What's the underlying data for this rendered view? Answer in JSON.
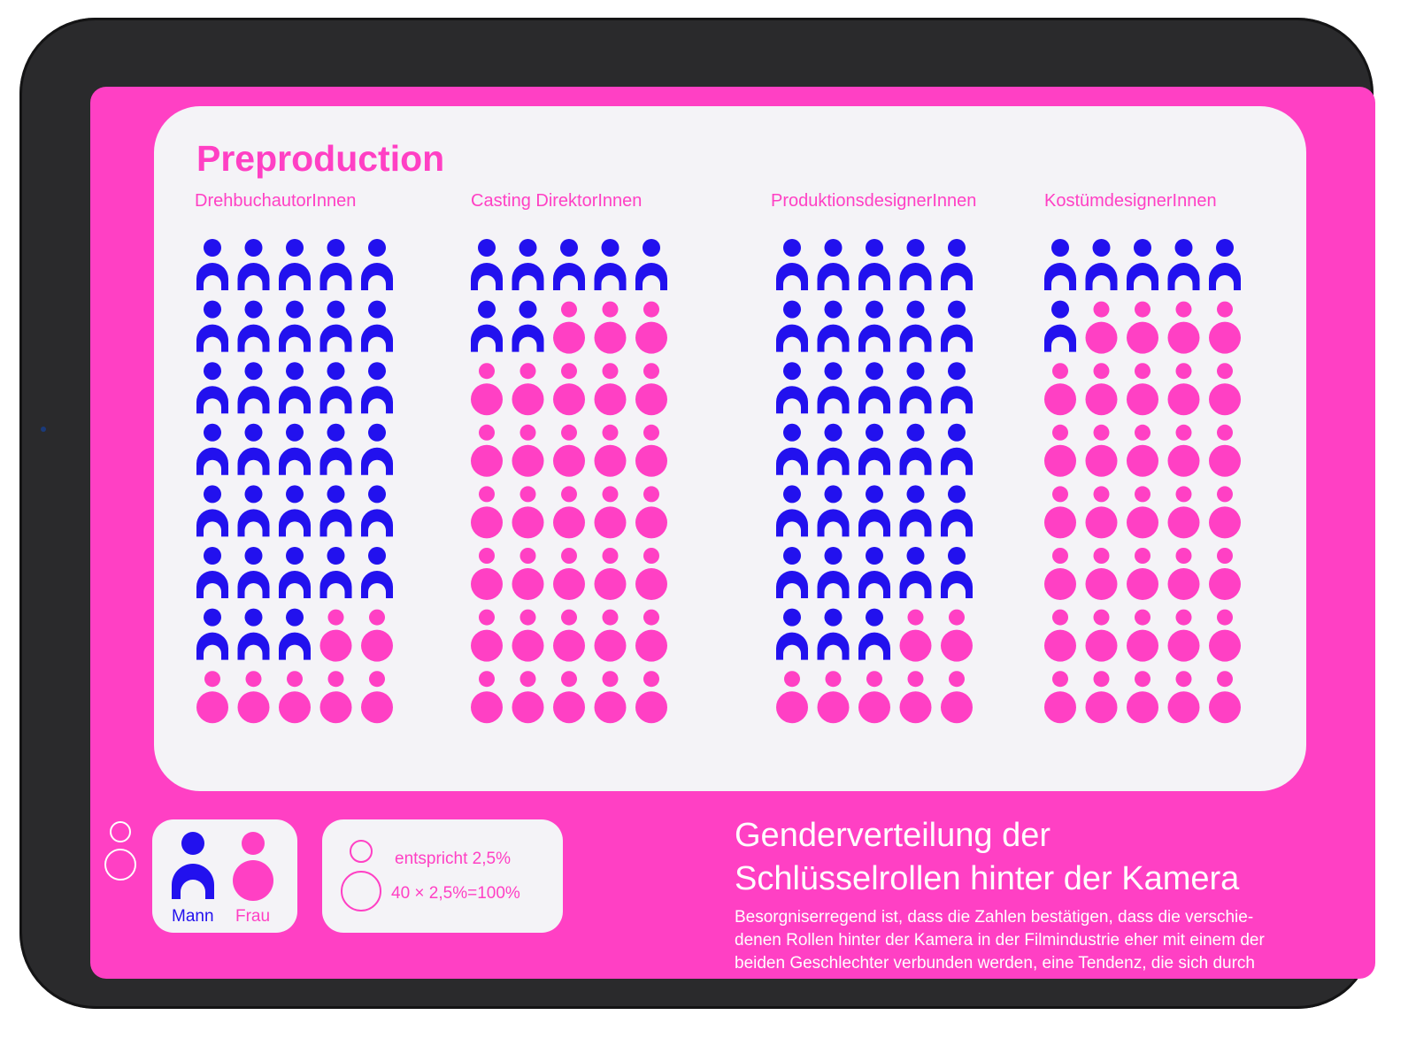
{
  "colors": {
    "mann": "#2211ee",
    "frau": "#ff40c4",
    "background": "#ff40c4",
    "card": "#f4f3f7"
  },
  "section_title": "Preproduction",
  "chart_data": {
    "type": "icon-array",
    "title": "Preproduction",
    "unit_percent_per_icon": 2.5,
    "icons_per_column": 40,
    "grid": {
      "columns": 5,
      "rows": 8
    },
    "categories": [
      "DrehbuchautorInnen",
      "Casting DirektorInnen",
      "ProduktionsdesignerInnen",
      "KostümdesignerInnen"
    ],
    "series": [
      {
        "name": "Mann",
        "values": [
          33,
          7,
          33,
          6
        ]
      },
      {
        "name": "Frau",
        "values": [
          7,
          33,
          7,
          34
        ]
      }
    ]
  },
  "legend": {
    "mann_label": "Mann",
    "frau_label": "Frau",
    "unit_text": "entspricht 2,5%",
    "total_text": "40 × 2,5%=100%"
  },
  "article": {
    "title_line1": "Genderverteilung der",
    "title_line2": "Schlüsselrollen hinter der Kamera",
    "paragraph": "Besorgniserregend ist, dass die Zahlen bestätigen, dass die verschie-denen Rollen hinter der Kamera in der Filmindustrie eher mit einem der beiden Geschlechter verbunden werden, eine Tendenz, die sich durch"
  }
}
